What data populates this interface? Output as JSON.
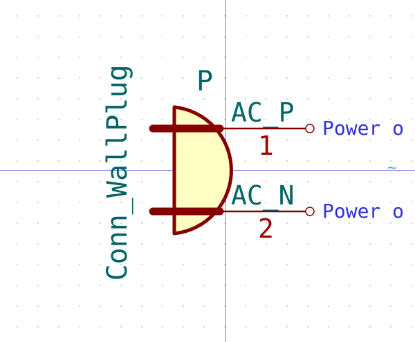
{
  "component": {
    "reference": "P",
    "value": "Conn_WallPlug",
    "pins": [
      {
        "name": "AC_P",
        "number": "1",
        "type": "Power o"
      },
      {
        "name": "AC_N",
        "number": "2",
        "type": "Power o"
      }
    ]
  },
  "overlay": {
    "tilde": "~"
  },
  "colors": {
    "body_fill": "#ffffc4",
    "outline": "#840000",
    "text": "#006464",
    "pin_number": "#a00000",
    "pin_type": "#3030dc",
    "axis": "#7b7bd6",
    "grid_dot": "#b9b9b9"
  }
}
